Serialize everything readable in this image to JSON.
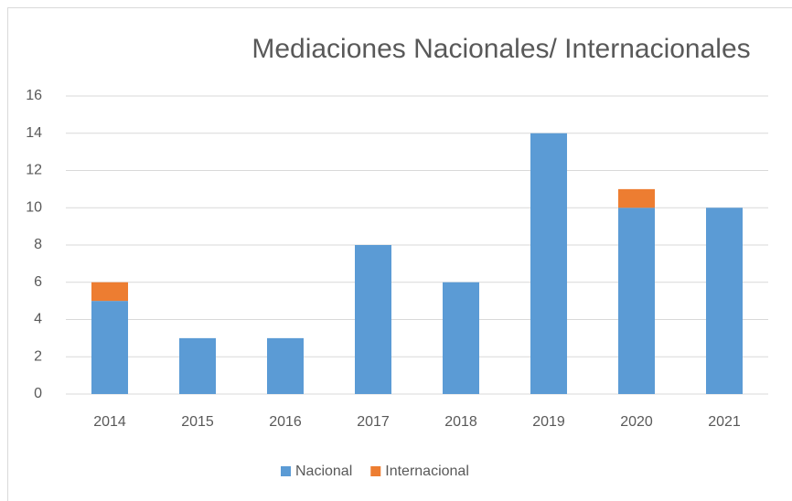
{
  "chart_data": {
    "type": "stacked_bar",
    "title": "Mediaciones Nacionales/ Internacionales",
    "categories": [
      "2014",
      "2015",
      "2016",
      "2017",
      "2018",
      "2019",
      "2020",
      "2021"
    ],
    "series": [
      {
        "name": "Nacional",
        "color": "#5b9bd5",
        "values": [
          5,
          3,
          3,
          8,
          6,
          14,
          10,
          10
        ]
      },
      {
        "name": "Internacional",
        "color": "#ed7d31",
        "values": [
          1,
          0,
          0,
          0,
          0,
          0,
          1,
          0
        ]
      }
    ],
    "ylim": [
      0,
      16
    ],
    "yticks": [
      0,
      2,
      4,
      6,
      8,
      10,
      12,
      14,
      16
    ],
    "grid": true,
    "legend": "bottom"
  }
}
